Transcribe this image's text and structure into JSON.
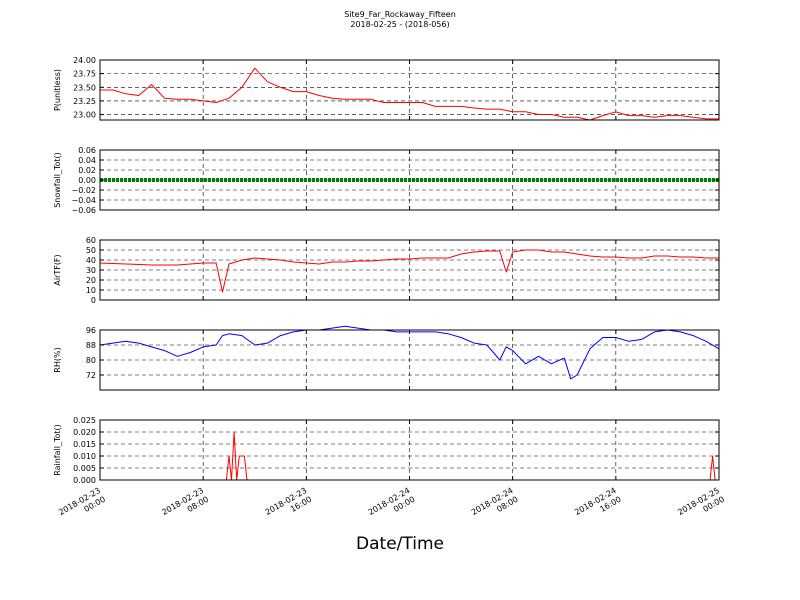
{
  "figure": {
    "title": "Site9_Far_Rockaway_Fifteen",
    "subtitle": "2018-02-25 - (2018-056)",
    "xlabel": "Date/Time"
  },
  "chart_data": [
    {
      "type": "line",
      "ylabel": "P(unitless)",
      "ylim": [
        22.9,
        24.0
      ],
      "yticks": [
        "24.00",
        "23.75",
        "23.50",
        "23.25",
        "23.00"
      ],
      "grid": true,
      "series": [
        {
          "color": "#ff0000",
          "x": [
            0,
            1,
            2,
            3,
            4,
            5,
            6,
            7,
            8,
            9,
            10,
            11,
            12,
            13,
            14,
            15,
            16,
            17,
            18,
            19,
            20,
            21,
            22,
            23,
            24,
            25,
            26,
            27,
            28,
            29,
            30,
            31,
            32,
            33,
            34,
            35,
            36,
            37,
            38,
            39,
            40,
            41,
            42,
            43,
            44,
            45,
            46,
            47,
            48
          ],
          "y": [
            23.45,
            23.45,
            23.38,
            23.35,
            23.55,
            23.3,
            23.28,
            23.28,
            23.25,
            23.22,
            23.3,
            23.5,
            23.85,
            23.6,
            23.5,
            23.42,
            23.42,
            23.35,
            23.3,
            23.28,
            23.28,
            23.28,
            23.22,
            23.22,
            23.22,
            23.22,
            23.15,
            23.15,
            23.15,
            23.12,
            23.1,
            23.1,
            23.05,
            23.05,
            23.0,
            23.0,
            22.95,
            22.95,
            22.9,
            22.98,
            23.05,
            22.98,
            22.98,
            22.95,
            22.98,
            22.98,
            22.95,
            22.92,
            22.92
          ]
        }
      ]
    },
    {
      "type": "line",
      "ylabel": "Snowfall_Tot()",
      "ylim": [
        -0.06,
        0.06
      ],
      "yticks": [
        "0.06",
        "0.04",
        "0.02",
        "0.00",
        "−0.02",
        "−0.04",
        "−0.06"
      ],
      "grid": true,
      "series": [
        {
          "color": "#008000",
          "marker": "dot",
          "x": [
            0,
            48
          ],
          "y": [
            0.0,
            0.0
          ]
        }
      ]
    },
    {
      "type": "line",
      "ylabel": "AirTF(F)",
      "ylim": [
        0,
        60
      ],
      "yticks": [
        "60",
        "50",
        "40",
        "30",
        "20",
        "10",
        "0"
      ],
      "grid": true,
      "series": [
        {
          "color": "#ff0000",
          "x": [
            0,
            2,
            4,
            6,
            7,
            8,
            9,
            9.5,
            10,
            11,
            12,
            13,
            14,
            15,
            16,
            17,
            18,
            19,
            20,
            21,
            22,
            23,
            24,
            25,
            26,
            27,
            28,
            29,
            30,
            31,
            31.5,
            32,
            33,
            34,
            35,
            36,
            37,
            38,
            39,
            40,
            41,
            42,
            43,
            44,
            45,
            46,
            47,
            48
          ],
          "y": [
            37,
            36,
            35,
            35,
            36,
            37,
            37,
            8,
            36,
            40,
            42,
            41,
            40,
            38,
            37,
            36,
            38,
            38,
            39,
            39,
            40,
            41,
            41,
            42,
            42,
            42,
            46,
            48,
            49,
            49,
            28,
            48,
            50,
            50,
            48,
            48,
            46,
            44,
            43,
            43,
            42,
            42,
            44,
            44,
            43,
            43,
            42,
            42
          ]
        }
      ]
    },
    {
      "type": "line",
      "ylabel": "RH(%)",
      "ylim": [
        64,
        96
      ],
      "yticks": [
        "96",
        "88",
        "80",
        "72"
      ],
      "grid": true,
      "series": [
        {
          "color": "#0000ff",
          "x": [
            0,
            1,
            2,
            3,
            4,
            5,
            6,
            7,
            8,
            9,
            9.5,
            10,
            11,
            12,
            13,
            14,
            15,
            16,
            17,
            18,
            19,
            20,
            21,
            22,
            23,
            24,
            25,
            26,
            27,
            28,
            29,
            30,
            31,
            31.5,
            32,
            33,
            34,
            35,
            36,
            36.5,
            37,
            38,
            39,
            40,
            41,
            42,
            43,
            44,
            45,
            46,
            47,
            48
          ],
          "y": [
            88,
            89,
            90,
            89,
            87,
            85,
            82,
            84,
            87,
            88,
            93,
            94,
            93,
            88,
            89,
            93,
            95,
            96,
            96,
            97,
            98,
            97,
            96,
            96,
            95,
            95,
            95,
            95,
            94,
            92,
            89,
            88,
            80,
            87,
            85,
            78,
            82,
            78,
            81,
            70,
            72,
            86,
            92,
            92,
            90,
            91,
            95,
            96,
            95,
            93,
            90,
            86
          ]
        }
      ]
    },
    {
      "type": "line",
      "ylabel": "Rainfall_Tot()",
      "ylim": [
        0,
        0.025
      ],
      "yticks": [
        "0.025",
        "0.020",
        "0.015",
        "0.010",
        "0.005",
        "0.000"
      ],
      "grid": true,
      "series": [
        {
          "color": "#ff0000",
          "x": [
            0,
            9.8,
            10,
            10.2,
            10.4,
            10.6,
            10.8,
            11.2,
            11.4,
            11.6,
            11.8,
            12,
            12.2,
            12.4,
            48
          ],
          "y": [
            0,
            0,
            0.01,
            0,
            0.02,
            0,
            0.01,
            0.01,
            0,
            0,
            0,
            0,
            0,
            0,
            0
          ]
        },
        {
          "color": "#ff0000",
          "x": [
            47,
            47.3,
            47.5,
            47.7,
            48.8,
            49,
            49.2,
            50,
            52.4,
            52.6,
            52.8,
            54
          ],
          "y": [
            0,
            0,
            0.01,
            0,
            0,
            0.01,
            0,
            0,
            0,
            0.01,
            0,
            0
          ]
        }
      ]
    }
  ],
  "x_axis": {
    "range_hours": [
      0,
      48
    ],
    "ticks": [
      [
        "2018-02-23",
        "00:00"
      ],
      [
        "2018-02-23",
        "08:00"
      ],
      [
        "2018-02-23",
        "16:00"
      ],
      [
        "2018-02-24",
        "00:00"
      ],
      [
        "2018-02-24",
        "08:00"
      ],
      [
        "2018-02-24",
        "16:00"
      ],
      [
        "2018-02-25",
        "00:00"
      ]
    ]
  }
}
